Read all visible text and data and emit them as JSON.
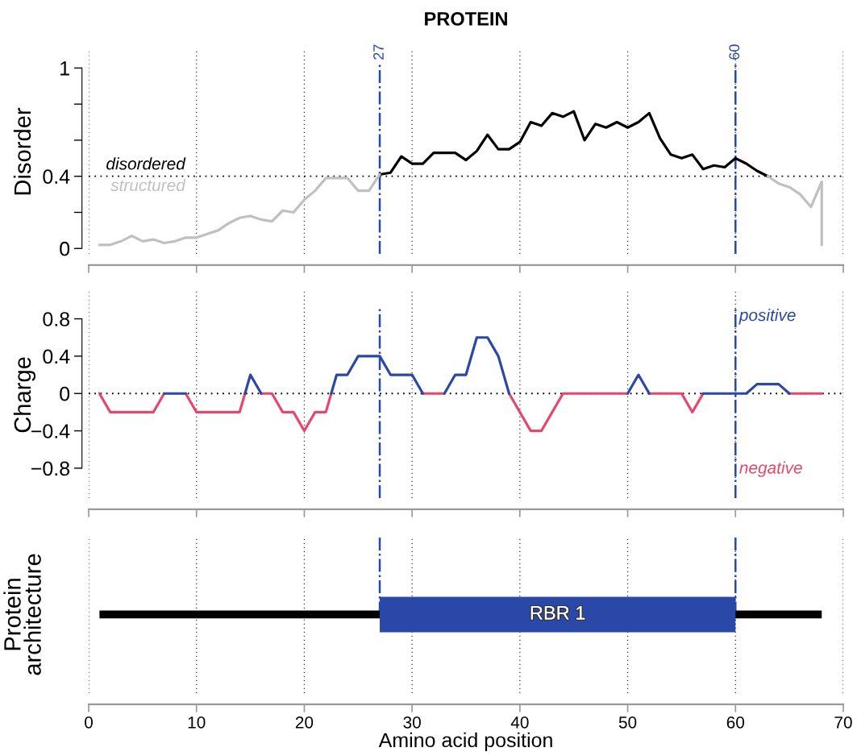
{
  "chart_data": [
    {
      "type": "line",
      "title": "PROTEIN",
      "ylabel": "Disorder",
      "x": [
        1,
        2,
        3,
        4,
        5,
        6,
        7,
        8,
        9,
        10,
        11,
        12,
        13,
        14,
        15,
        16,
        17,
        18,
        19,
        20,
        21,
        22,
        23,
        24,
        25,
        26,
        27,
        28,
        29,
        30,
        31,
        32,
        33,
        34,
        35,
        36,
        37,
        38,
        39,
        40,
        41,
        42,
        43,
        44,
        45,
        46,
        47,
        48,
        49,
        50,
        51,
        52,
        53,
        54,
        55,
        56,
        57,
        58,
        59,
        60,
        61,
        62,
        63,
        64,
        65,
        66,
        67,
        68,
        68
      ],
      "series": [
        {
          "name": "disordered",
          "color": "#000000",
          "values": [
            null,
            null,
            null,
            null,
            null,
            null,
            null,
            null,
            null,
            null,
            null,
            null,
            null,
            null,
            null,
            null,
            null,
            null,
            null,
            null,
            null,
            null,
            null,
            null,
            null,
            null,
            0.41,
            0.42,
            0.51,
            0.47,
            0.47,
            0.53,
            0.53,
            0.53,
            0.49,
            0.54,
            0.63,
            0.55,
            0.55,
            0.59,
            0.7,
            0.68,
            0.75,
            0.73,
            0.76,
            0.6,
            0.69,
            0.67,
            0.7,
            0.67,
            0.7,
            0.75,
            0.61,
            0.52,
            0.5,
            0.52,
            0.44,
            0.46,
            0.45,
            0.5,
            0.47,
            0.43,
            0.4,
            null,
            null,
            null,
            null,
            null,
            null
          ]
        },
        {
          "name": "structured",
          "color": "#c0c0c0",
          "values": [
            0.02,
            0.02,
            0.04,
            0.07,
            0.04,
            0.05,
            0.03,
            0.04,
            0.06,
            0.06,
            0.08,
            0.1,
            0.14,
            0.17,
            0.18,
            0.16,
            0.15,
            0.21,
            0.2,
            0.27,
            0.32,
            0.39,
            0.39,
            0.39,
            0.32,
            0.32,
            0.41,
            null,
            null,
            null,
            null,
            null,
            null,
            null,
            null,
            null,
            null,
            null,
            null,
            null,
            null,
            null,
            null,
            null,
            null,
            null,
            null,
            null,
            null,
            null,
            null,
            null,
            null,
            null,
            null,
            null,
            null,
            null,
            null,
            null,
            null,
            null,
            0.4,
            0.36,
            0.34,
            0.3,
            0.23,
            0.37,
            0.02
          ]
        }
      ],
      "xlim": [
        0,
        70
      ],
      "xticks": [
        0,
        10,
        20,
        30,
        40,
        50,
        60,
        70
      ],
      "ylim": [
        -0.03,
        1.1
      ],
      "yticks": [
        0,
        {
          "value": 0.2,
          "label": null
        },
        0.4,
        {
          "value": 0.6,
          "label": null
        },
        {
          "value": 0.8,
          "label": null
        },
        1
      ],
      "tick_labels": "y",
      "grid": "x",
      "legend": false,
      "marker": "none",
      "line_style": "solid",
      "ref_lines": [
        {
          "axis": "y",
          "value": 0.4,
          "color": "#000000",
          "line_style": "dotted"
        },
        {
          "axis": "x",
          "value": 27,
          "label": "27",
          "color": "#2a48a8",
          "line_style": "dashdot"
        },
        {
          "axis": "x",
          "value": 60,
          "label": "60",
          "color": "#2a48a8",
          "line_style": "dashdot"
        }
      ]
    },
    {
      "type": "line",
      "ylabel": "Charge",
      "series": [
        {
          "name": "negative",
          "color": "#e5486a",
          "x": [
            1,
            2,
            3,
            4,
            5,
            6,
            7,
            null,
            9,
            10,
            11,
            12,
            13,
            14,
            14.5,
            null,
            16,
            17,
            18,
            19,
            20,
            21,
            22,
            22.5,
            null,
            31,
            32,
            33,
            null,
            39,
            40,
            41,
            42,
            43,
            44,
            45,
            46,
            47,
            48,
            49,
            50,
            null,
            52,
            53,
            54,
            55,
            56,
            57,
            null,
            65,
            66,
            67,
            68
          ],
          "values": [
            0,
            -0.2,
            -0.2,
            -0.2,
            -0.2,
            -0.2,
            0,
            null,
            0,
            -0.2,
            -0.2,
            -0.2,
            -0.2,
            -0.2,
            0,
            null,
            0,
            0,
            -0.2,
            -0.2,
            -0.4,
            -0.2,
            -0.2,
            0,
            null,
            0,
            0,
            0,
            null,
            0,
            -0.2,
            -0.4,
            -0.4,
            -0.2,
            0,
            0,
            0,
            0,
            0,
            0,
            0,
            null,
            0,
            0,
            0,
            0,
            -0.2,
            0,
            null,
            0,
            0,
            0,
            0
          ]
        },
        {
          "name": "positive",
          "color": "#2a48a8",
          "x": [
            7,
            8,
            9,
            null,
            14.5,
            15,
            16,
            null,
            22.5,
            23,
            24,
            25,
            26,
            27,
            28,
            29,
            30,
            31,
            null,
            33,
            34,
            35,
            36,
            37,
            38,
            39,
            null,
            50,
            51,
            52,
            null,
            57,
            58,
            59,
            60,
            61,
            62,
            63,
            64,
            65
          ],
          "values": [
            0,
            0,
            0,
            null,
            0,
            0.2,
            0,
            null,
            0,
            0.2,
            0.2,
            0.4,
            0.4,
            0.4,
            0.2,
            0.2,
            0.2,
            0,
            null,
            0,
            0.2,
            0.2,
            0.6,
            0.6,
            0.4,
            0,
            null,
            0,
            0.2,
            0,
            null,
            0,
            0,
            0,
            0,
            0,
            0.1,
            0.1,
            0.1,
            0
          ]
        }
      ],
      "xlim": [
        0,
        70
      ],
      "xticks": [
        0,
        10,
        20,
        30,
        40,
        50,
        60,
        70
      ],
      "ylim": [
        -1.12,
        1.09
      ],
      "yticks": [
        {
          "value": -0.8,
          "label": "−0.8"
        },
        {
          "value": -0.4,
          "label": "−0.4"
        },
        0,
        0.4,
        0.8
      ],
      "tick_labels": "y",
      "grid": "x",
      "legend": false,
      "marker": "none",
      "line_style": "solid",
      "ref_lines": [
        {
          "axis": "y",
          "value": 0,
          "color": "#000000",
          "line_style": "dotted"
        },
        {
          "axis": "x",
          "value": 27,
          "color": "#2a48a8",
          "line_style": "dashdot"
        },
        {
          "axis": "x",
          "value": 60,
          "color": "#2a48a8",
          "line_style": "dashdot"
        }
      ]
    },
    {
      "type": "bar",
      "orientation": "horizontal",
      "ylabel": "Protein\narchitecture",
      "xlabel": "Amino acid position",
      "categories": [
        null
      ],
      "series": [
        {
          "color": "#000000",
          "base": [
            1
          ],
          "values": [
            67
          ]
        },
        {
          "color": "#2a48a8",
          "base": [
            27
          ],
          "values": [
            33
          ],
          "value_labels": [
            "RBR 1"
          ]
        }
      ],
      "xlim": [
        0,
        70
      ],
      "xticks": [
        0,
        10,
        20,
        30,
        40,
        50,
        60,
        70
      ],
      "tick_labels": "x",
      "grid": "x",
      "legend": false,
      "ref_lines": [
        {
          "axis": "x",
          "value": 27,
          "color": "#2a48a8",
          "line_style": "dashdot"
        },
        {
          "axis": "x",
          "value": 60,
          "color": "#2a48a8",
          "line_style": "dashdot"
        }
      ]
    }
  ]
}
